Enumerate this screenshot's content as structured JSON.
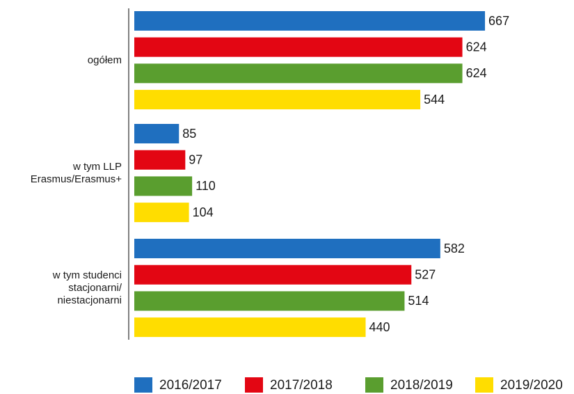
{
  "chart_data": {
    "type": "barh",
    "categories": [
      "ogółem",
      "w tym LLP\nErasmus/Erasmus+",
      "w tym studenci\nstacjonarni/\nniestacjonarni"
    ],
    "series": [
      {
        "name": "2016/2017",
        "color": "#1f6fbf",
        "values": [
          667,
          85,
          582
        ]
      },
      {
        "name": "2017/2018",
        "color": "#e30613",
        "values": [
          624,
          97,
          527
        ]
      },
      {
        "name": "2018/2019",
        "color": "#5a9e2f",
        "values": [
          624,
          110,
          514
        ]
      },
      {
        "name": "2019/2020",
        "color": "#ffdd00",
        "values": [
          544,
          104,
          440
        ]
      }
    ],
    "xlim": [
      0,
      700
    ]
  }
}
